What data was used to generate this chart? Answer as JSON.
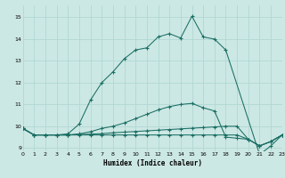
{
  "xlabel": "Humidex (Indice chaleur)",
  "bg_color": "#cce8e4",
  "grid_color": "#b0d8d4",
  "line_color": "#1a6e64",
  "xlim": [
    0,
    23
  ],
  "ylim": [
    8.85,
    15.55
  ],
  "yticks": [
    9,
    10,
    11,
    12,
    13,
    14,
    15
  ],
  "xticks": [
    0,
    1,
    2,
    3,
    4,
    5,
    6,
    7,
    8,
    9,
    10,
    11,
    12,
    13,
    14,
    15,
    16,
    17,
    18,
    19,
    20,
    21,
    22,
    23
  ],
  "line_main_x": [
    0,
    1,
    2,
    3,
    4,
    5,
    6,
    7,
    8,
    9,
    10,
    11,
    12,
    13,
    14,
    15,
    16,
    17,
    18,
    21,
    22,
    23
  ],
  "line_main_y": [
    9.9,
    9.6,
    9.6,
    9.6,
    9.65,
    10.1,
    11.2,
    12.0,
    12.5,
    13.1,
    13.5,
    13.6,
    14.1,
    14.25,
    14.05,
    15.05,
    14.1,
    14.0,
    13.5,
    8.7,
    9.1,
    9.6
  ],
  "line_upper_x": [
    0,
    1,
    2,
    3,
    4,
    5,
    6,
    7,
    8,
    9,
    10,
    11,
    12,
    13,
    14,
    15,
    16,
    17,
    18,
    19,
    20,
    21,
    22,
    23
  ],
  "line_upper_y": [
    9.9,
    9.6,
    9.6,
    9.6,
    9.6,
    9.65,
    9.75,
    9.9,
    10.0,
    10.15,
    10.35,
    10.55,
    10.75,
    10.9,
    11.0,
    11.05,
    10.85,
    10.7,
    9.5,
    9.45,
    9.4,
    9.1,
    9.3,
    9.6
  ],
  "line_mid_x": [
    0,
    1,
    2,
    3,
    4,
    5,
    6,
    7,
    8,
    9,
    10,
    11,
    12,
    13,
    14,
    15,
    16,
    17,
    18,
    19,
    20,
    21,
    22,
    23
  ],
  "line_mid_y": [
    9.9,
    9.6,
    9.6,
    9.6,
    9.6,
    9.62,
    9.64,
    9.66,
    9.7,
    9.73,
    9.76,
    9.79,
    9.82,
    9.85,
    9.88,
    9.91,
    9.94,
    9.97,
    10.0,
    10.0,
    9.4,
    9.1,
    9.3,
    9.6
  ],
  "line_flat_x": [
    0,
    1,
    2,
    3,
    4,
    5,
    6,
    7,
    8,
    9,
    10,
    11,
    12,
    13,
    14,
    15,
    16,
    17,
    18,
    19,
    20,
    21,
    22,
    23
  ],
  "line_flat_y": [
    9.9,
    9.6,
    9.6,
    9.6,
    9.6,
    9.6,
    9.6,
    9.6,
    9.6,
    9.6,
    9.6,
    9.6,
    9.6,
    9.6,
    9.6,
    9.6,
    9.6,
    9.6,
    9.6,
    9.6,
    9.4,
    9.1,
    9.3,
    9.6
  ]
}
